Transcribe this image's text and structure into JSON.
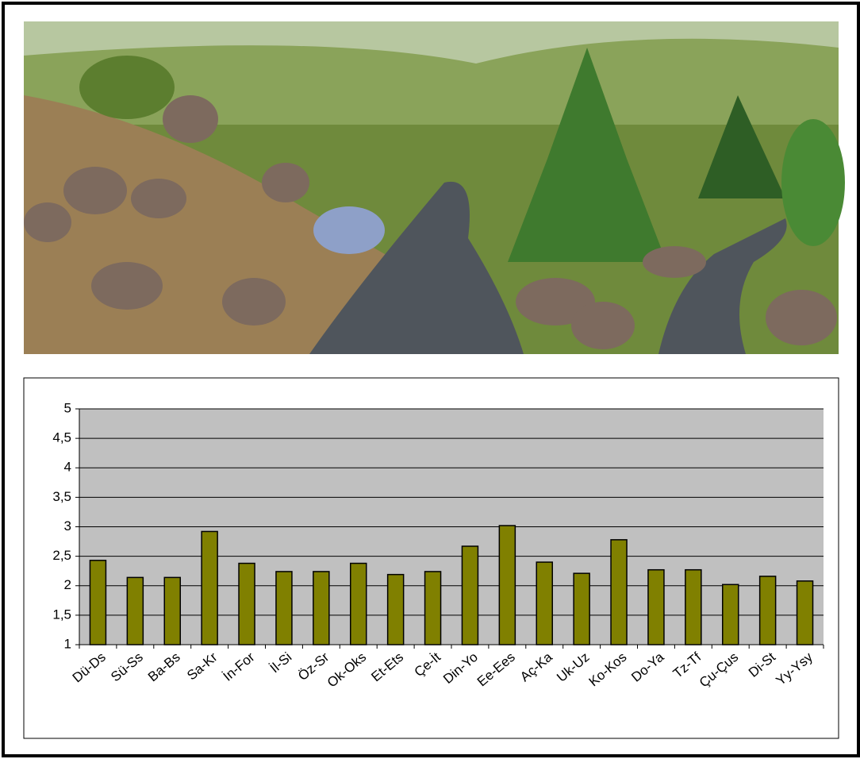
{
  "chart_data": {
    "type": "bar",
    "categories": [
      "Dü-Ds",
      "Sü-Ss",
      "Ba-Bs",
      "Sa-Kr",
      "İn-For",
      "İl-Si",
      "Öz-Sr",
      "Ok-Oks",
      "Et-Ets",
      "Çe-İt",
      "Din-Yo",
      "Ee-Ees",
      "Aç-Ka",
      "Uk-Uz",
      "Ko-Kos",
      "Do-Ya",
      "Tz-Tf",
      "Çu-Çus",
      "Di-St",
      "Yy-Ysy"
    ],
    "values": [
      2.43,
      2.14,
      2.14,
      2.92,
      2.38,
      2.24,
      2.24,
      2.38,
      2.19,
      2.24,
      2.67,
      3.02,
      2.4,
      2.21,
      2.78,
      2.27,
      2.27,
      2.02,
      2.16,
      2.08
    ],
    "color": "#808000",
    "ylim": [
      1,
      5
    ],
    "yticks": [
      1,
      {
        "value": 1.5,
        "label": "1,5"
      },
      2,
      {
        "value": 2.5,
        "label": "2,5"
      },
      3,
      {
        "value": 3.5,
        "label": "3,5"
      },
      4,
      {
        "value": 4.5,
        "label": "4,5"
      },
      5
    ],
    "grid": true
  }
}
